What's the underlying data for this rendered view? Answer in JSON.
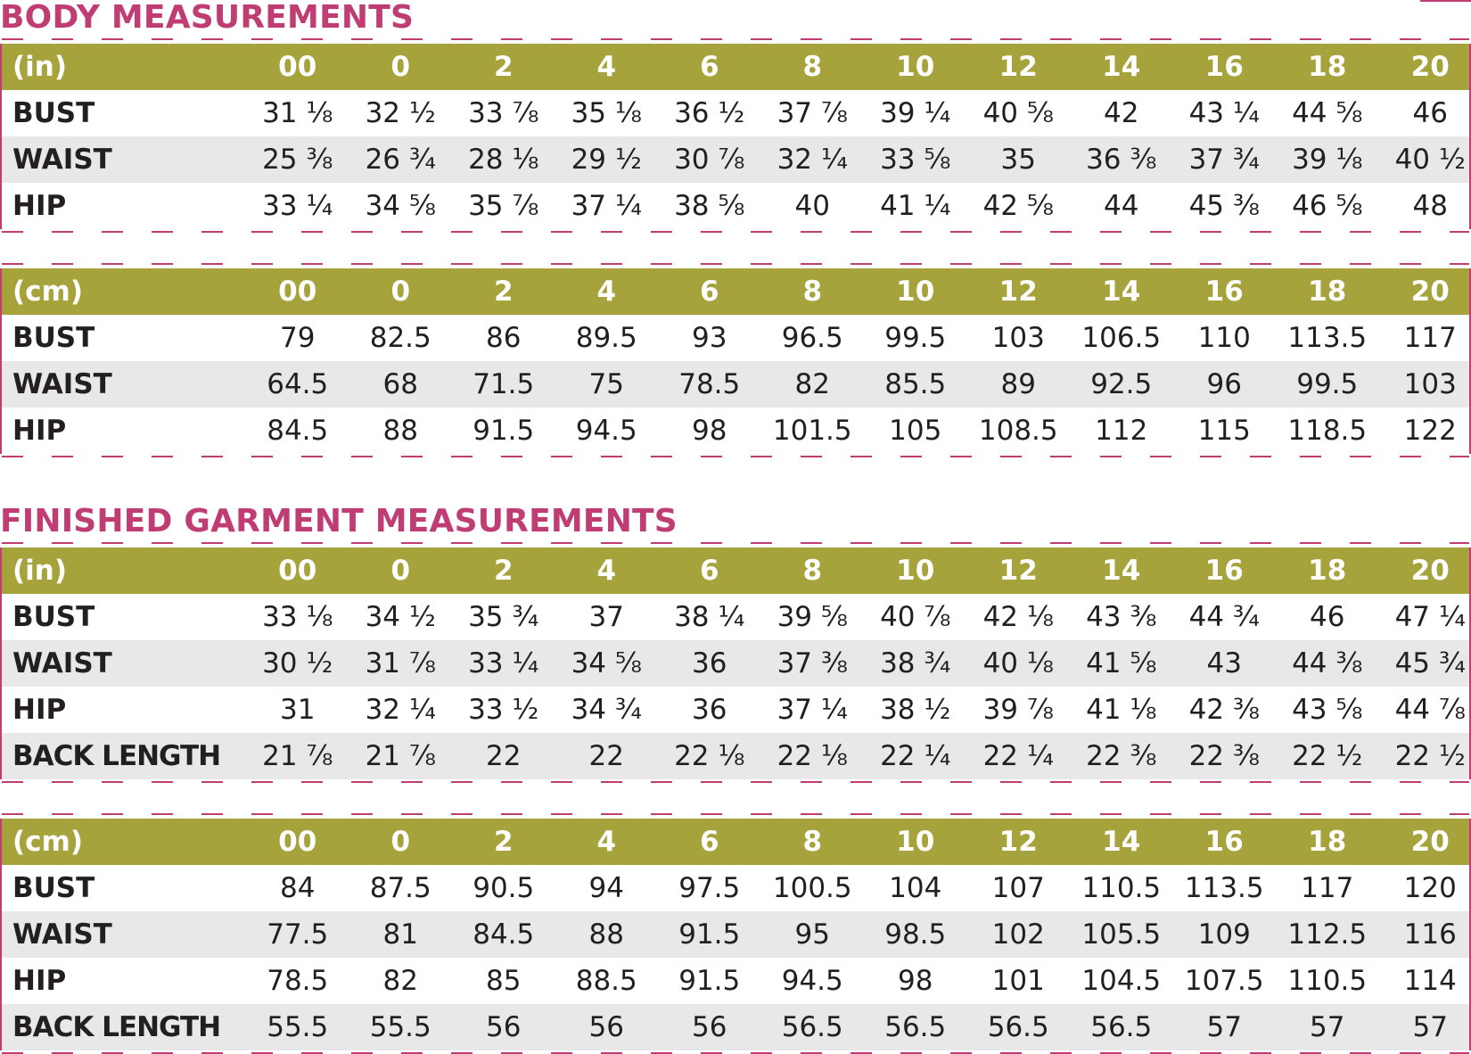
{
  "body_section": {
    "title": "BODY MEASUREMENTS",
    "inches": {
      "unit": "(in)",
      "sizes": [
        "00",
        "0",
        "2",
        "4",
        "6",
        "8",
        "10",
        "12",
        "14",
        "16",
        "18",
        "20"
      ],
      "rows": [
        {
          "label": "BUST",
          "values": [
            "31 ⅛",
            "32 ½",
            "33 ⅞",
            "35 ⅛",
            "36 ½",
            "37 ⅞",
            "39 ¼",
            "40 ⅝",
            "42",
            "43 ¼",
            "44 ⅝",
            "46"
          ]
        },
        {
          "label": "WAIST",
          "values": [
            "25 ⅜",
            "26 ¾",
            "28 ⅛",
            "29 ½",
            "30 ⅞",
            "32 ¼",
            "33 ⅝",
            "35",
            "36 ⅜",
            "37 ¾",
            "39 ⅛",
            "40 ½"
          ]
        },
        {
          "label": "HIP",
          "values": [
            "33 ¼",
            "34 ⅝",
            "35 ⅞",
            "37 ¼",
            "38 ⅝",
            "40",
            "41 ¼",
            "42 ⅝",
            "44",
            "45 ⅜",
            "46 ⅝",
            "48"
          ]
        }
      ]
    },
    "centimeters": {
      "unit": "(cm)",
      "sizes": [
        "00",
        "0",
        "2",
        "4",
        "6",
        "8",
        "10",
        "12",
        "14",
        "16",
        "18",
        "20"
      ],
      "rows": [
        {
          "label": "BUST",
          "values": [
            "79",
            "82.5",
            "86",
            "89.5",
            "93",
            "96.5",
            "99.5",
            "103",
            "106.5",
            "110",
            "113.5",
            "117"
          ]
        },
        {
          "label": "WAIST",
          "values": [
            "64.5",
            "68",
            "71.5",
            "75",
            "78.5",
            "82",
            "85.5",
            "89",
            "92.5",
            "96",
            "99.5",
            "103"
          ]
        },
        {
          "label": "HIP",
          "values": [
            "84.5",
            "88",
            "91.5",
            "94.5",
            "98",
            "101.5",
            "105",
            "108.5",
            "112",
            "115",
            "118.5",
            "122"
          ]
        }
      ]
    }
  },
  "garment_section": {
    "title": "FINISHED GARMENT MEASUREMENTS",
    "inches": {
      "unit": "(in)",
      "sizes": [
        "00",
        "0",
        "2",
        "4",
        "6",
        "8",
        "10",
        "12",
        "14",
        "16",
        "18",
        "20"
      ],
      "rows": [
        {
          "label": "BUST",
          "values": [
            "33 ⅛",
            "34 ½",
            "35 ¾",
            "37",
            "38 ¼",
            "39 ⅝",
            "40 ⅞",
            "42 ⅛",
            "43 ⅜",
            "44 ¾",
            "46",
            "47 ¼"
          ]
        },
        {
          "label": "WAIST",
          "values": [
            "30 ½",
            "31 ⅞",
            "33 ¼",
            "34 ⅝",
            "36",
            "37 ⅜",
            "38 ¾",
            "40 ⅛",
            "41 ⅝",
            "43",
            "44 ⅜",
            "45 ¾"
          ]
        },
        {
          "label": "HIP",
          "values": [
            "31",
            "32 ¼",
            "33 ½",
            "34 ¾",
            "36",
            "37 ¼",
            "38 ½",
            "39 ⅞",
            "41 ⅛",
            "42 ⅜",
            "43 ⅝",
            "44 ⅞"
          ]
        },
        {
          "label": "BACK LENGTH",
          "values": [
            "21 ⅞",
            "21 ⅞",
            "22",
            "22",
            "22 ⅛",
            "22 ⅛",
            "22 ¼",
            "22 ¼",
            "22 ⅜",
            "22 ⅜",
            "22 ½",
            "22 ½"
          ]
        }
      ]
    },
    "centimeters": {
      "unit": "(cm)",
      "sizes": [
        "00",
        "0",
        "2",
        "4",
        "6",
        "8",
        "10",
        "12",
        "14",
        "16",
        "18",
        "20"
      ],
      "rows": [
        {
          "label": "BUST",
          "values": [
            "84",
            "87.5",
            "90.5",
            "94",
            "97.5",
            "100.5",
            "104",
            "107",
            "110.5",
            "113.5",
            "117",
            "120"
          ]
        },
        {
          "label": "WAIST",
          "values": [
            "77.5",
            "81",
            "84.5",
            "88",
            "91.5",
            "95",
            "98.5",
            "102",
            "105.5",
            "109",
            "112.5",
            "116"
          ]
        },
        {
          "label": "HIP",
          "values": [
            "78.5",
            "82",
            "85",
            "88.5",
            "91.5",
            "94.5",
            "98",
            "101",
            "104.5",
            "107.5",
            "110.5",
            "114"
          ]
        },
        {
          "label": "BACK LENGTH",
          "values": [
            "55.5",
            "55.5",
            "56",
            "56",
            "56",
            "56.5",
            "56.5",
            "56.5",
            "56.5",
            "57",
            "57",
            "57"
          ]
        }
      ]
    }
  },
  "colors": {
    "title": "#c03d74",
    "header_band": "#a6a33c",
    "header_text": "#ffffff",
    "shaded_row": "#e8e8e8",
    "body_text": "#231f20"
  }
}
